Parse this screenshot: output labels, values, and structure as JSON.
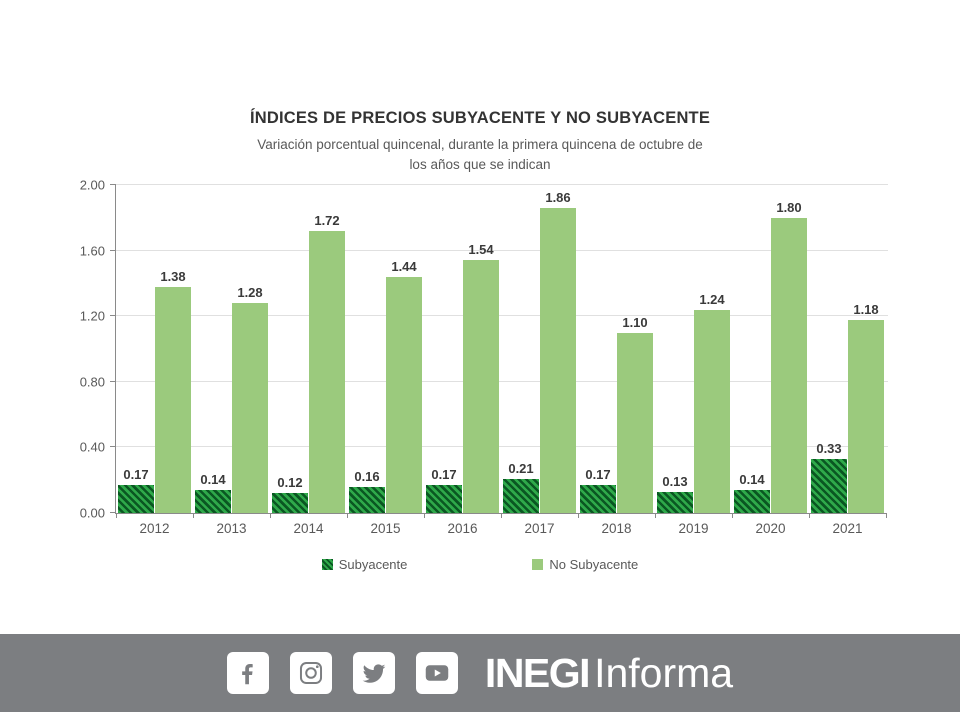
{
  "chart": {
    "title": "ÍNDICES DE PRECIOS SUBYACENTE Y NO SUBYACENTE",
    "subtitle": "Variación porcentual quincenal, durante la primera quincena de octubre de los años que se indican"
  },
  "chart_data": {
    "type": "bar",
    "categories": [
      "2012",
      "2013",
      "2014",
      "2015",
      "2016",
      "2017",
      "2018",
      "2019",
      "2020",
      "2021"
    ],
    "series": [
      {
        "name": "Subyacente",
        "values": [
          0.17,
          0.14,
          0.12,
          0.16,
          0.17,
          0.21,
          0.17,
          0.13,
          0.14,
          0.33
        ],
        "pattern": "diagonal-hatch",
        "color": "#2fa94a",
        "pattern_color": "#0a5722"
      },
      {
        "name": "No Subyacente",
        "values": [
          1.38,
          1.28,
          1.72,
          1.44,
          1.54,
          1.86,
          1.1,
          1.24,
          1.8,
          1.18
        ],
        "pattern": "solid",
        "color": "#9bca7d"
      }
    ],
    "ylim": [
      0.0,
      2.0
    ],
    "yticks": [
      0.0,
      0.4,
      0.8,
      1.2,
      1.6,
      2.0
    ],
    "ytick_format": "0.00",
    "grid": true,
    "data_labels": true,
    "legend_position": "bottom"
  },
  "footer": {
    "background": "#7c7e81",
    "icons": [
      "facebook-icon",
      "instagram-icon",
      "twitter-icon",
      "youtube-icon"
    ],
    "brand_bold": "INEGI",
    "brand_light": "Informa"
  },
  "colors": {
    "subyacente_fill": "#2fa94a",
    "subyacente_hatch": "#0a5722",
    "no_subyacente_fill": "#9bca7d",
    "gridline": "#e0e0e0",
    "axis": "#8a8a8a",
    "text_primary": "#333333",
    "text_secondary": "#595959",
    "footer_bg": "#7c7e81"
  }
}
